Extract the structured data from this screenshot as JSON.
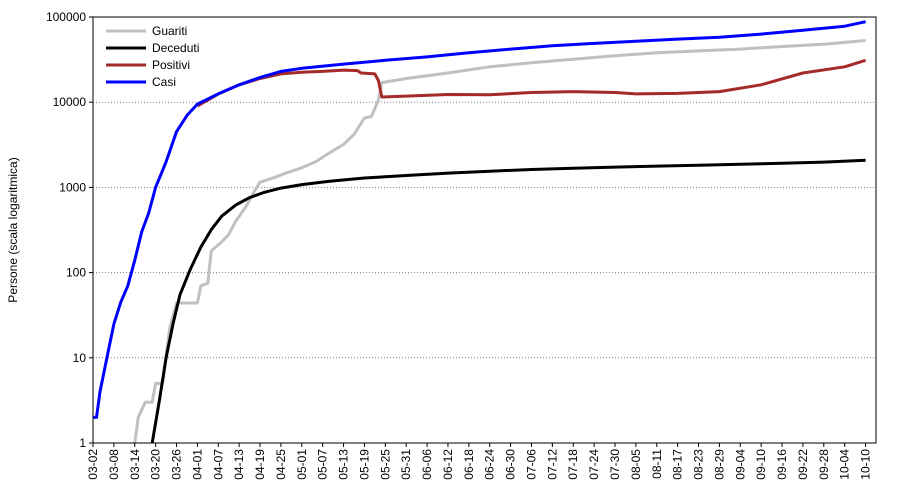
{
  "chart_data": {
    "type": "line",
    "ylabel": "Persone (scala logaritmica)",
    "xlabel": "",
    "y_scale": "log",
    "ylim": [
      1,
      100000
    ],
    "y_ticks": [
      1,
      10,
      100,
      1000,
      10000,
      100000
    ],
    "y_tick_labels": [
      "1",
      "10",
      "100",
      "1000",
      "10000",
      "100000"
    ],
    "grid": "horizontal dotted",
    "legend_position": "top-left",
    "x_tick_labels": [
      "03-02",
      "03-08",
      "03-14",
      "03-20",
      "03-26",
      "04-01",
      "04-07",
      "04-13",
      "04-19",
      "04-25",
      "05-01",
      "05-07",
      "05-13",
      "05-19",
      "05-25",
      "05-31",
      "06-06",
      "06-12",
      "06-18",
      "06-24",
      "06-30",
      "07-06",
      "07-12",
      "07-18",
      "07-24",
      "07-30",
      "08-05",
      "08-11",
      "08-17",
      "08-23",
      "08-29",
      "09-04",
      "09-10",
      "09-16",
      "09-22",
      "09-28",
      "10-04",
      "10-10"
    ],
    "series": [
      {
        "name": "Guariti",
        "color": "#c0c0c0",
        "points": [
          [
            "03-14",
            1
          ],
          [
            "03-15",
            2
          ],
          [
            "03-17",
            3
          ],
          [
            "03-19",
            3
          ],
          [
            "03-20",
            5
          ],
          [
            "03-22",
            5
          ],
          [
            "03-24",
            22
          ],
          [
            "03-26",
            44
          ],
          [
            "03-28",
            44
          ],
          [
            "04-01",
            44
          ],
          [
            "04-02",
            70
          ],
          [
            "04-04",
            75
          ],
          [
            "04-05",
            180
          ],
          [
            "04-08",
            230
          ],
          [
            "04-10",
            280
          ],
          [
            "04-12",
            400
          ],
          [
            "04-15",
            600
          ],
          [
            "04-17",
            850
          ],
          [
            "04-19",
            1150
          ],
          [
            "04-23",
            1300
          ],
          [
            "04-27",
            1500
          ],
          [
            "05-01",
            1700
          ],
          [
            "05-05",
            2000
          ],
          [
            "05-09",
            2550
          ],
          [
            "05-13",
            3200
          ],
          [
            "05-16",
            4200
          ],
          [
            "05-19",
            6500
          ],
          [
            "05-21",
            6800
          ],
          [
            "05-23",
            10500
          ],
          [
            "05-24",
            17000
          ],
          [
            "05-31",
            19000
          ],
          [
            "06-12",
            22000
          ],
          [
            "06-24",
            26000
          ],
          [
            "07-06",
            29000
          ],
          [
            "07-18",
            32000
          ],
          [
            "07-30",
            35000
          ],
          [
            "08-11",
            38000
          ],
          [
            "08-23",
            40000
          ],
          [
            "09-04",
            42000
          ],
          [
            "09-16",
            45000
          ],
          [
            "09-28",
            48000
          ],
          [
            "10-10",
            53000
          ]
        ]
      },
      {
        "name": "Deceduti",
        "color": "#000000",
        "points": [
          [
            "03-19",
            1
          ],
          [
            "03-21",
            3
          ],
          [
            "03-23",
            10
          ],
          [
            "03-25",
            25
          ],
          [
            "03-27",
            55
          ],
          [
            "03-30",
            110
          ],
          [
            "04-02",
            200
          ],
          [
            "04-05",
            320
          ],
          [
            "04-08",
            460
          ],
          [
            "04-12",
            620
          ],
          [
            "04-16",
            760
          ],
          [
            "04-20",
            870
          ],
          [
            "04-25",
            980
          ],
          [
            "05-01",
            1080
          ],
          [
            "05-09",
            1180
          ],
          [
            "05-19",
            1290
          ],
          [
            "05-31",
            1380
          ],
          [
            "06-12",
            1470
          ],
          [
            "06-24",
            1550
          ],
          [
            "07-06",
            1620
          ],
          [
            "07-18",
            1680
          ],
          [
            "07-30",
            1730
          ],
          [
            "08-11",
            1780
          ],
          [
            "08-23",
            1820
          ],
          [
            "09-04",
            1870
          ],
          [
            "09-16",
            1920
          ],
          [
            "09-28",
            1980
          ],
          [
            "10-10",
            2080
          ]
        ]
      },
      {
        "name": "Positivi",
        "color": "#a52a2a",
        "points": [
          [
            "04-01",
            9000
          ],
          [
            "04-07",
            12500
          ],
          [
            "04-13",
            16000
          ],
          [
            "04-19",
            19000
          ],
          [
            "04-25",
            21500
          ],
          [
            "05-01",
            22500
          ],
          [
            "05-07",
            23000
          ],
          [
            "05-13",
            23800
          ],
          [
            "05-17",
            23500
          ],
          [
            "05-18",
            22000
          ],
          [
            "05-22",
            21500
          ],
          [
            "05-23",
            18000
          ],
          [
            "05-24",
            11500
          ],
          [
            "05-31",
            11800
          ],
          [
            "06-12",
            12300
          ],
          [
            "06-24",
            12200
          ],
          [
            "07-06",
            13000
          ],
          [
            "07-18",
            13300
          ],
          [
            "07-30",
            13000
          ],
          [
            "08-05",
            12500
          ],
          [
            "08-17",
            12700
          ],
          [
            "08-29",
            13300
          ],
          [
            "09-10",
            16000
          ],
          [
            "09-22",
            22000
          ],
          [
            "10-04",
            26000
          ],
          [
            "10-10",
            31000
          ]
        ]
      },
      {
        "name": "Casi",
        "color": "#0000ff",
        "points": [
          [
            "03-02",
            2
          ],
          [
            "03-03",
            2
          ],
          [
            "03-04",
            4
          ],
          [
            "03-06",
            10
          ],
          [
            "03-08",
            25
          ],
          [
            "03-10",
            45
          ],
          [
            "03-12",
            70
          ],
          [
            "03-14",
            140
          ],
          [
            "03-16",
            300
          ],
          [
            "03-18",
            500
          ],
          [
            "03-20",
            1000
          ],
          [
            "03-23",
            2000
          ],
          [
            "03-26",
            4500
          ],
          [
            "03-29",
            7000
          ],
          [
            "04-01",
            9500
          ],
          [
            "04-07",
            12500
          ],
          [
            "04-13",
            16000
          ],
          [
            "04-19",
            19500
          ],
          [
            "04-25",
            23000
          ],
          [
            "05-01",
            25000
          ],
          [
            "05-13",
            28000
          ],
          [
            "05-25",
            31000
          ],
          [
            "06-06",
            34000
          ],
          [
            "06-18",
            38000
          ],
          [
            "06-30",
            42000
          ],
          [
            "07-12",
            46000
          ],
          [
            "07-24",
            49000
          ],
          [
            "08-05",
            52000
          ],
          [
            "08-17",
            55000
          ],
          [
            "08-29",
            58000
          ],
          [
            "09-10",
            63000
          ],
          [
            "09-22",
            70000
          ],
          [
            "10-04",
            78000
          ],
          [
            "10-10",
            88000
          ]
        ]
      }
    ]
  }
}
